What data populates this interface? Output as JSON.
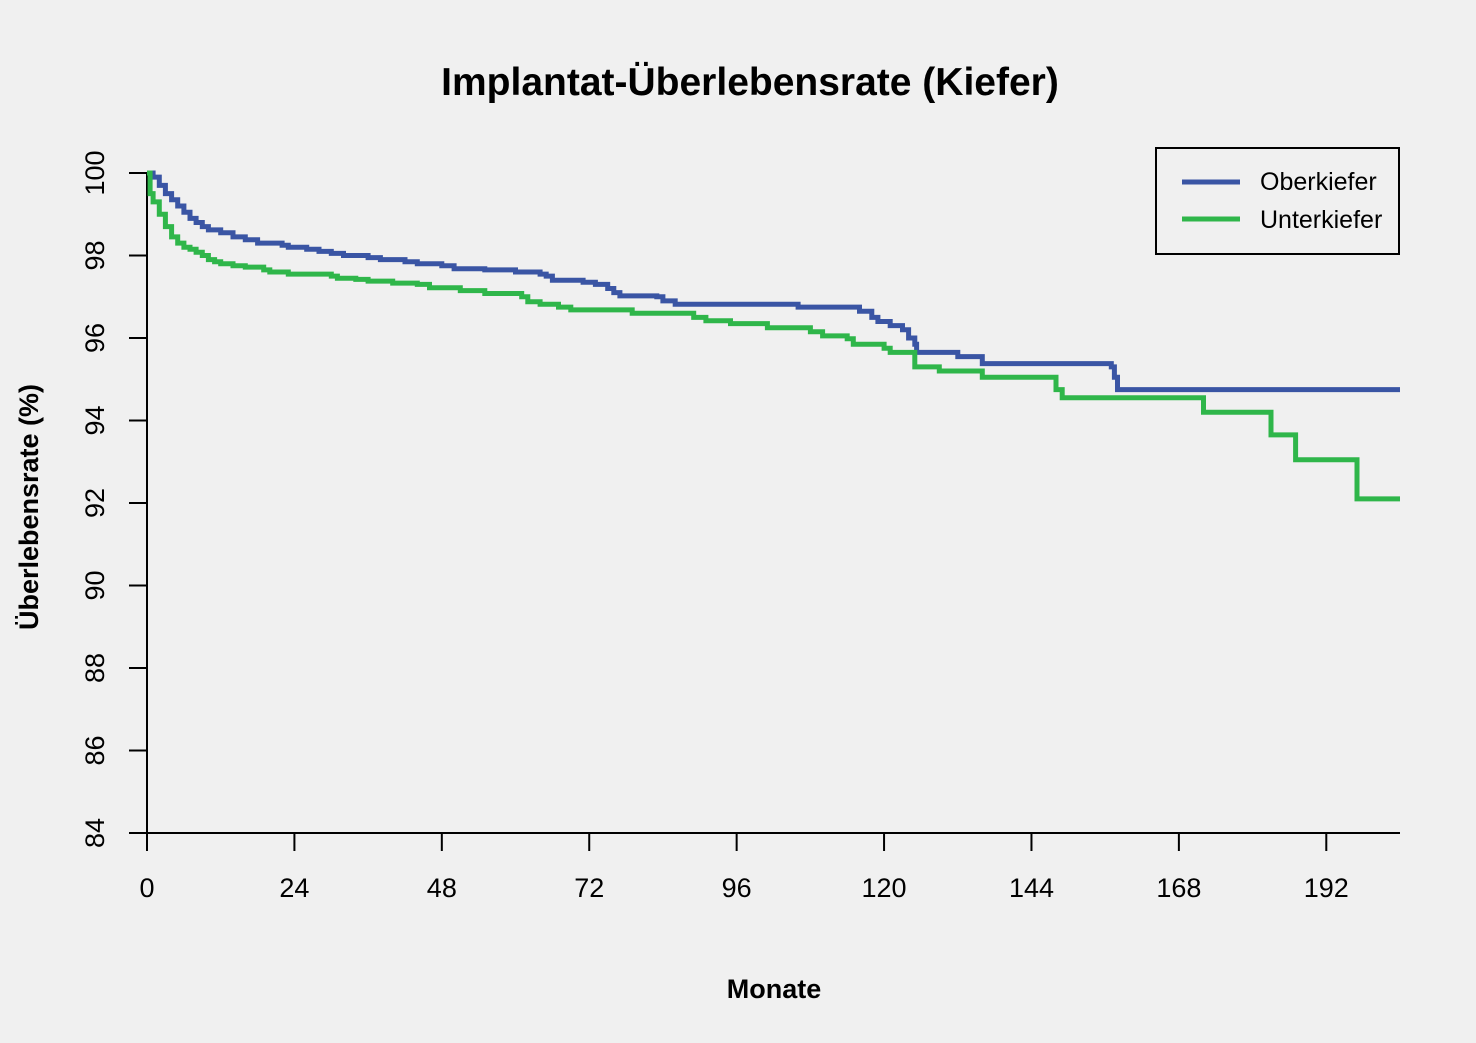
{
  "chart_data": {
    "type": "line",
    "title": "Implantat-Überlebensrate (Kiefer)",
    "xlabel": "Monate",
    "ylabel": "Überlebensrate (%)",
    "xlim": [
      0,
      204
    ],
    "ylim": [
      84,
      100
    ],
    "x_ticks": [
      0,
      24,
      48,
      72,
      96,
      120,
      144,
      168,
      192
    ],
    "y_ticks": [
      84,
      86,
      88,
      90,
      92,
      94,
      96,
      98,
      100
    ],
    "grid": false,
    "legend_position": "top-right",
    "series": [
      {
        "name": "Oberkiefer",
        "color": "#3a55a4",
        "points": [
          [
            0,
            100
          ],
          [
            1,
            99.9
          ],
          [
            2,
            99.7
          ],
          [
            3,
            99.5
          ],
          [
            4,
            99.35
          ],
          [
            5,
            99.2
          ],
          [
            6,
            99.05
          ],
          [
            7,
            98.9
          ],
          [
            8,
            98.8
          ],
          [
            9,
            98.7
          ],
          [
            10,
            98.62
          ],
          [
            12,
            98.55
          ],
          [
            14,
            98.45
          ],
          [
            16,
            98.38
          ],
          [
            18,
            98.3
          ],
          [
            21,
            98.3
          ],
          [
            22,
            98.25
          ],
          [
            23,
            98.2
          ],
          [
            26,
            98.15
          ],
          [
            28,
            98.1
          ],
          [
            30,
            98.05
          ],
          [
            32,
            98.0
          ],
          [
            36,
            97.95
          ],
          [
            38,
            97.9
          ],
          [
            42,
            97.85
          ],
          [
            44,
            97.8
          ],
          [
            48,
            97.75
          ],
          [
            50,
            97.68
          ],
          [
            55,
            97.65
          ],
          [
            60,
            97.6
          ],
          [
            64,
            97.55
          ],
          [
            65,
            97.5
          ],
          [
            66,
            97.4
          ],
          [
            71,
            97.35
          ],
          [
            73,
            97.3
          ],
          [
            75,
            97.2
          ],
          [
            76,
            97.1
          ],
          [
            77,
            97.02
          ],
          [
            83,
            97.0
          ],
          [
            84,
            96.9
          ],
          [
            86,
            96.82
          ],
          [
            106,
            96.75
          ],
          [
            116,
            96.65
          ],
          [
            118,
            96.5
          ],
          [
            119,
            96.4
          ],
          [
            121,
            96.3
          ],
          [
            123,
            96.2
          ],
          [
            124,
            96.0
          ],
          [
            125,
            95.85
          ],
          [
            125.3,
            95.65
          ],
          [
            132,
            95.55
          ],
          [
            136,
            95.38
          ],
          [
            157,
            95.3
          ],
          [
            157.5,
            95.05
          ],
          [
            158,
            94.75
          ],
          [
            204,
            94.75
          ]
        ]
      },
      {
        "name": "Unterkiefer",
        "color": "#2fb64a",
        "points": [
          [
            0,
            100
          ],
          [
            0.5,
            99.5
          ],
          [
            1,
            99.3
          ],
          [
            2,
            99.0
          ],
          [
            3,
            98.7
          ],
          [
            4,
            98.45
          ],
          [
            5,
            98.3
          ],
          [
            6,
            98.2
          ],
          [
            7,
            98.15
          ],
          [
            8,
            98.08
          ],
          [
            9,
            98.0
          ],
          [
            10,
            97.9
          ],
          [
            11,
            97.85
          ],
          [
            12,
            97.8
          ],
          [
            14,
            97.75
          ],
          [
            16,
            97.72
          ],
          [
            19,
            97.65
          ],
          [
            20,
            97.6
          ],
          [
            23,
            97.55
          ],
          [
            30,
            97.5
          ],
          [
            31,
            97.45
          ],
          [
            34,
            97.42
          ],
          [
            36,
            97.38
          ],
          [
            40,
            97.33
          ],
          [
            44,
            97.3
          ],
          [
            46,
            97.22
          ],
          [
            51,
            97.15
          ],
          [
            55,
            97.08
          ],
          [
            61,
            97.0
          ],
          [
            62,
            96.88
          ],
          [
            64,
            96.82
          ],
          [
            67,
            96.75
          ],
          [
            69,
            96.68
          ],
          [
            79,
            96.6
          ],
          [
            89,
            96.5
          ],
          [
            91,
            96.42
          ],
          [
            95,
            96.35
          ],
          [
            101,
            96.25
          ],
          [
            108,
            96.15
          ],
          [
            110,
            96.05
          ],
          [
            114,
            95.98
          ],
          [
            115,
            95.85
          ],
          [
            120,
            95.75
          ],
          [
            121,
            95.65
          ],
          [
            125,
            95.3
          ],
          [
            129,
            95.2
          ],
          [
            136,
            95.05
          ],
          [
            148,
            94.75
          ],
          [
            149,
            94.55
          ],
          [
            172,
            94.2
          ],
          [
            183,
            93.65
          ],
          [
            187,
            93.05
          ],
          [
            197,
            92.1
          ],
          [
            204,
            92.1
          ]
        ]
      }
    ]
  }
}
